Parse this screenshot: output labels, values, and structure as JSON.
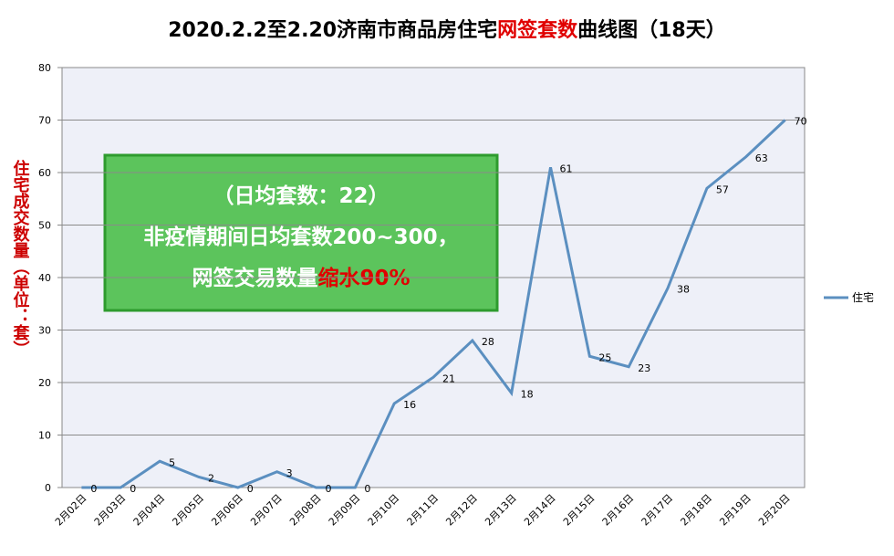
{
  "chart_data": {
    "type": "line",
    "title": [
      {
        "text": "2020.2.2至2.20济南市商品房住宅",
        "color": "#000000"
      },
      {
        "text": "网签套数",
        "color": "#e00000"
      },
      {
        "text": "曲线图（18天）",
        "color": "#000000"
      }
    ],
    "y_label": "住宅成交数量（单位：套）",
    "y_label_color": "#cc0000",
    "annotation": [
      [
        {
          "text": "（日均套数：22）",
          "color": "#ffffff"
        }
      ],
      [
        {
          "text": "非疫情期间日均套数200~300，",
          "color": "#ffffff"
        }
      ],
      [
        {
          "text": "网签交易数量",
          "color": "#ffffff"
        },
        {
          "text": "缩水90%",
          "color": "#e00000"
        }
      ]
    ],
    "categories": [
      "2月02日",
      "2月03日",
      "2月04日",
      "2月05日",
      "2月06日",
      "2月07日",
      "2月08日",
      "2月09日",
      "2月10日",
      "2月11日",
      "2月12日",
      "2月13日",
      "2月14日",
      "2月15日",
      "2月16日",
      "2月17日",
      "2月18日",
      "2月19日",
      "2月20日"
    ],
    "series": [
      {
        "name": "住宅",
        "color": "#5b8fc0",
        "values": [
          0,
          0,
          5,
          2,
          0,
          3,
          0,
          0,
          16,
          21,
          28,
          18,
          61,
          25,
          23,
          38,
          57,
          63,
          70
        ]
      }
    ],
    "ylim": [
      0,
      80
    ],
    "yticks": [
      0,
      10,
      20,
      30,
      40,
      50,
      60,
      70,
      80
    ],
    "grid": true,
    "legend": "right"
  }
}
